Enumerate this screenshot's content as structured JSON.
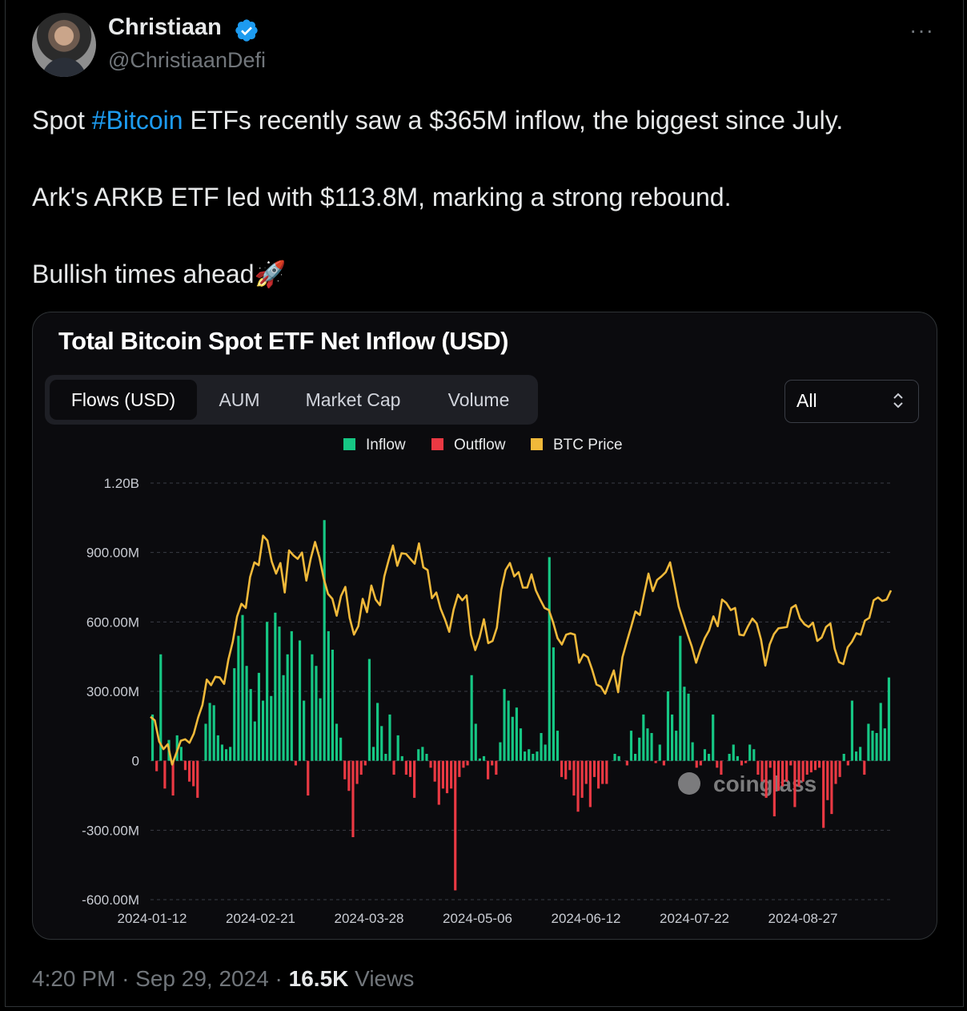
{
  "author": {
    "name": "Christiaan",
    "handle": "@ChristiaanDefi",
    "verified_icon": "verified-badge-icon",
    "more_icon": "more-icon"
  },
  "tweet": {
    "line1_prefix": "Spot ",
    "hashtag": "#Bitcoin",
    "line1_suffix": " ETFs recently saw a $365M inflow, the biggest since July.",
    "line2": "Ark's ARKB ETF led with $113.8M, marking a strong rebound.",
    "line3": "Bullish times ahead",
    "emoji": "🚀"
  },
  "card": {
    "title": "Total Bitcoin Spot ETF Net Inflow (USD)",
    "tabs": [
      "Flows (USD)",
      "AUM",
      "Market Cap",
      "Volume"
    ],
    "active_tab": "Flows (USD)",
    "range_select": "All",
    "watermark": "coinglass"
  },
  "meta": {
    "time": "4:20 PM",
    "sep": "·",
    "date": "Sep 29, 2024",
    "views_count": "16.5K",
    "views_label": "Views"
  },
  "colors": {
    "inflow": "#16c784",
    "outflow": "#ea3943",
    "btc_price": "#f0b93a",
    "hashtag": "#1d9bf0"
  },
  "chart_data": {
    "type": "bar",
    "legend": [
      "Inflow",
      "Outflow",
      "BTC Price"
    ],
    "legend_position": "top-center",
    "grid": true,
    "y_ticks": [
      "1.20B",
      "900.00M",
      "600.00M",
      "300.00M",
      "0",
      "-300.00M",
      "-600.00M"
    ],
    "ylim": [
      -600000000,
      1200000000
    ],
    "x_ticks": [
      "2024-01-12",
      "2024-02-21",
      "2024-03-28",
      "2024-05-06",
      "2024-06-12",
      "2024-07-22",
      "2024-08-27"
    ],
    "series": [
      {
        "name": "Inflow / Outflow",
        "unit": "USD M",
        "values": [
          200,
          -45,
          460,
          -120,
          90,
          -150,
          110,
          60,
          -40,
          -90,
          -110,
          -160,
          0,
          160,
          250,
          240,
          110,
          70,
          50,
          60,
          400,
          540,
          630,
          410,
          310,
          170,
          380,
          260,
          600,
          280,
          640,
          580,
          370,
          460,
          560,
          -20,
          520,
          260,
          -150,
          460,
          410,
          270,
          1040,
          560,
          480,
          160,
          100,
          -80,
          -130,
          -330,
          -100,
          -60,
          -20,
          440,
          60,
          250,
          150,
          30,
          200,
          -60,
          110,
          20,
          -60,
          -70,
          -160,
          50,
          60,
          30,
          -30,
          -90,
          -190,
          -120,
          -140,
          -120,
          -560,
          -70,
          -30,
          -20,
          370,
          160,
          10,
          20,
          -80,
          -20,
          -60,
          80,
          310,
          260,
          190,
          230,
          140,
          40,
          50,
          30,
          40,
          120,
          70,
          880,
          490,
          130,
          -70,
          -80,
          -40,
          -150,
          -220,
          -160,
          -100,
          -200,
          -70,
          -120,
          -100,
          -100,
          0,
          30,
          20,
          0,
          -20,
          130,
          30,
          100,
          200,
          140,
          120,
          -10,
          70,
          -20,
          300,
          200,
          130,
          540,
          320,
          290,
          80,
          -30,
          -20,
          50,
          30,
          200,
          -30,
          -60,
          0,
          30,
          70,
          20,
          -20,
          -10,
          70,
          50,
          -60,
          -90,
          -160,
          -30,
          -240,
          -130,
          -110,
          -90,
          -20,
          -200,
          -110,
          -90,
          -60,
          -50,
          -40,
          -30,
          -290,
          -170,
          -230,
          -100,
          -70,
          30,
          -20,
          260,
          40,
          60,
          -60,
          160,
          130,
          120,
          250,
          140,
          360
        ],
        "values_note_omitted": false
      },
      {
        "name": "BTC Price",
        "unit": "USD",
        "values": [
          46300,
          45800,
          42800,
          41700,
          42400,
          39500,
          41200,
          42900,
          43100,
          42600,
          43900,
          46200,
          48000,
          51600,
          50800,
          52000,
          51900,
          51000,
          54500,
          57000,
          60600,
          62400,
          61800,
          66200,
          68300,
          67900,
          72100,
          71400,
          68400,
          66700,
          68200,
          64000,
          70000,
          69300,
          68800,
          69700,
          65700,
          68800,
          71200,
          69000,
          66000,
          63800,
          63100,
          60700,
          63500,
          64800,
          60400,
          58000,
          59200,
          63100,
          61200,
          65000,
          63000,
          62200,
          66300,
          68600,
          70700,
          67800,
          69600,
          69500,
          68800,
          68100,
          71000,
          67600,
          67200,
          63200,
          64000,
          61700,
          60200,
          58400,
          61600,
          63700,
          62900,
          63600,
          58000,
          55800,
          57600,
          60200,
          56800,
          57100,
          59000,
          64400,
          67200,
          68200,
          66300,
          66900,
          64700,
          64700,
          66600,
          64300,
          63000,
          61800,
          61500,
          59700,
          57500,
          56600,
          58000,
          58200,
          58000,
          54000,
          55200,
          54800,
          53000,
          50900,
          50600,
          49600,
          51300,
          52900,
          49800,
          54800,
          57000,
          59100,
          61300,
          60800,
          63800,
          66700,
          64200,
          65800,
          66300,
          66900,
          68300,
          65200,
          62000,
          60000,
          58100,
          56300,
          54000,
          55900,
          57500,
          58600,
          60600,
          59200,
          63000,
          62500,
          61500,
          61800,
          58000,
          57900,
          59200,
          60300,
          59600,
          57300,
          53600,
          56600,
          58100,
          58900,
          59000,
          59100,
          61800,
          62200,
          60300,
          59500,
          59100,
          59700,
          57100,
          57600,
          59100,
          59600,
          56000,
          54100,
          53800,
          56200,
          57000,
          58200,
          58000,
          60000,
          60400,
          62900,
          63300,
          62800,
          63000,
          64300
        ],
        "ylim": [
          40000,
          74000
        ]
      }
    ]
  }
}
